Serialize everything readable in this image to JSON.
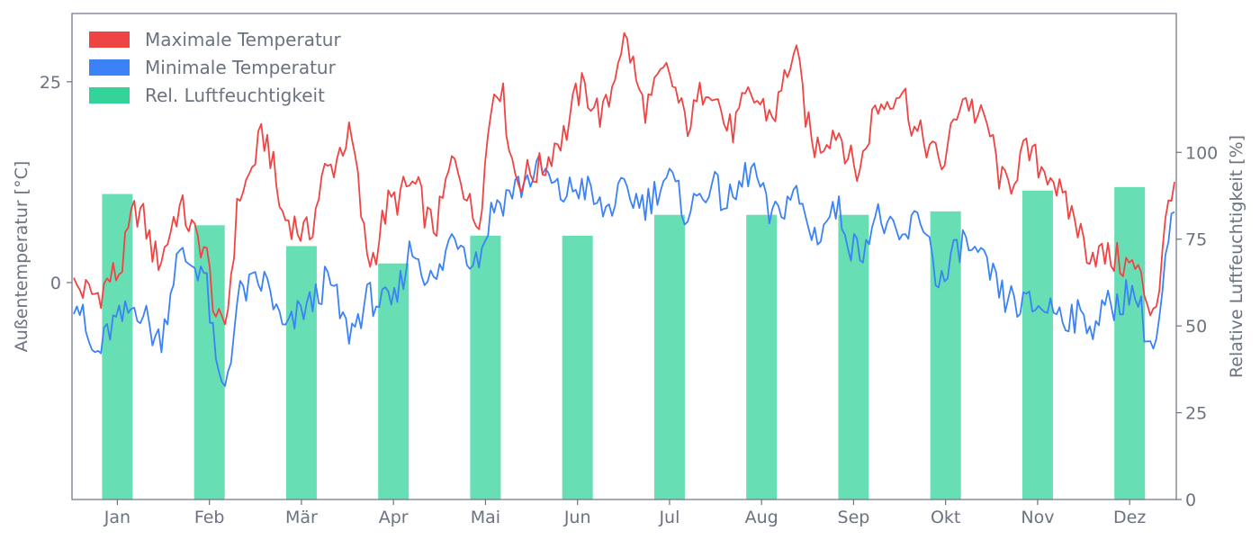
{
  "chart_data": {
    "type": "bar+line",
    "title": "",
    "x_ticks": [
      "Jan",
      "Feb",
      "Mär",
      "Apr",
      "Mai",
      "Jun",
      "Jul",
      "Aug",
      "Sep",
      "Okt",
      "Nov",
      "Dez"
    ],
    "xlabel": "",
    "ylabel_left": "Außentemperatur [°C]",
    "ylabel_right": "Relative Luftfeuchtigkeit [%]",
    "ylim_left": [
      -27,
      33.5
    ],
    "yticks_left": [
      0,
      25
    ],
    "ylim_right": [
      0,
      140
    ],
    "yticks_right": [
      0,
      25,
      50,
      75,
      100
    ],
    "legend_position": "top-left",
    "grid": false,
    "colors": {
      "max_temp": "#ef4444",
      "min_temp": "#3b82f6",
      "humidity": "#34d399",
      "axis": "#6b7280"
    },
    "series": [
      {
        "name": "Maximale Temperatur",
        "kind": "line",
        "x_day_of_year": [
          1,
          8,
          15,
          22,
          29,
          36,
          43,
          50,
          57,
          64,
          71,
          78,
          85,
          92,
          99,
          106,
          113,
          120,
          127,
          134,
          141,
          148,
          155,
          162,
          169,
          176,
          183,
          190,
          197,
          204,
          211,
          218,
          225,
          232,
          239,
          246,
          253,
          260,
          267,
          274,
          281,
          288,
          295,
          302,
          309,
          316,
          323,
          330,
          337,
          344,
          351,
          358,
          365
        ],
        "values": [
          -0.5,
          -1.5,
          1,
          9,
          3,
          9,
          5,
          -6,
          12,
          18,
          8,
          6,
          14,
          18,
          3,
          10,
          12,
          7,
          15,
          8,
          25,
          13,
          14,
          18,
          24,
          21,
          30,
          22,
          26,
          20,
          25,
          19,
          23,
          21,
          28,
          17,
          19,
          14,
          22,
          24,
          18,
          15,
          23,
          20,
          12,
          16,
          14,
          9,
          4,
          3,
          2,
          -3,
          13
        ]
      },
      {
        "name": "Minimale Temperatur",
        "kind": "line",
        "x_day_of_year": [
          1,
          8,
          15,
          22,
          29,
          36,
          43,
          50,
          57,
          64,
          71,
          78,
          85,
          92,
          99,
          106,
          113,
          120,
          127,
          134,
          141,
          148,
          155,
          162,
          169,
          176,
          183,
          190,
          197,
          204,
          211,
          218,
          225,
          232,
          239,
          246,
          253,
          260,
          267,
          274,
          281,
          288,
          295,
          302,
          309,
          316,
          323,
          330,
          337,
          344,
          351,
          358,
          365
        ],
        "values": [
          -2,
          -9,
          -5,
          -3,
          -7,
          3,
          2,
          -13,
          -1,
          0,
          -6,
          -3,
          0,
          -6,
          -2,
          -3,
          4,
          0,
          6,
          3,
          10,
          12,
          14,
          11,
          12,
          9,
          11,
          10,
          13,
          9,
          12,
          10,
          14,
          8,
          11,
          6,
          9,
          4,
          8,
          5,
          8,
          0,
          5,
          2,
          -2,
          -3,
          -3,
          -4,
          -5,
          -3,
          -1,
          -8,
          8
        ]
      },
      {
        "name": "Rel. Luftfeuchtigkeit",
        "kind": "bar",
        "axis": "right",
        "categories": [
          "Jan",
          "Feb",
          "Mär",
          "Apr",
          "Mai",
          "Jun",
          "Jul",
          "Aug",
          "Sep",
          "Okt",
          "Nov",
          "Dez"
        ],
        "values": [
          88,
          79,
          73,
          68,
          76,
          76,
          82,
          82,
          82,
          83,
          89,
          90
        ]
      }
    ]
  }
}
